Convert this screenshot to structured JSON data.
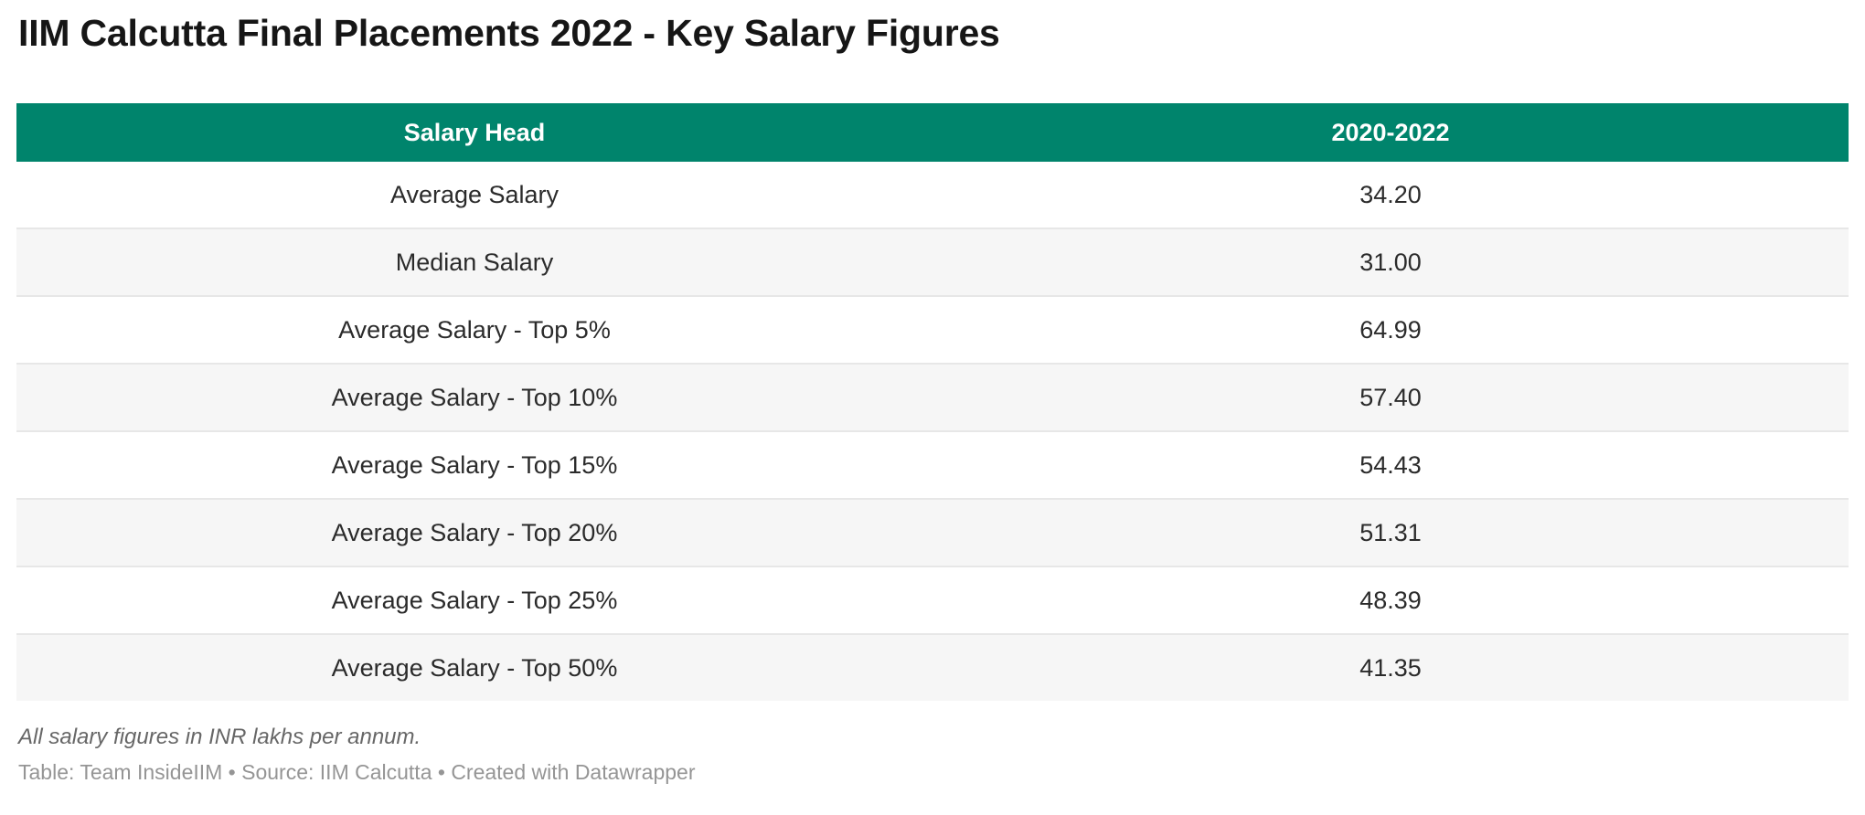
{
  "title": "IIM Calcutta Final Placements 2022 - Key Salary Figures",
  "table": {
    "columns": {
      "salary_head": "Salary Head",
      "period": "2020-2022"
    },
    "rows": [
      {
        "label": "Average Salary",
        "value": "34.20"
      },
      {
        "label": "Median Salary",
        "value": "31.00"
      },
      {
        "label": "Average Salary - Top 5%",
        "value": "64.99"
      },
      {
        "label": "Average Salary - Top 10%",
        "value": "57.40"
      },
      {
        "label": "Average Salary - Top 15%",
        "value": "54.43"
      },
      {
        "label": "Average Salary - Top 20%",
        "value": "51.31"
      },
      {
        "label": "Average Salary - Top 25%",
        "value": "48.39"
      },
      {
        "label": "Average Salary - Top 50%",
        "value": "41.35"
      }
    ]
  },
  "footnote": "All salary figures in INR lakhs per annum.",
  "credit": "Table: Team InsideIIM • Source: IIM Calcutta • Created with Datawrapper",
  "colors": {
    "header_bg": "#00846C",
    "header_text": "#ffffff",
    "row_bg": "#ffffff",
    "row_alt_bg": "#f6f6f6",
    "divider": "#e7e7e7",
    "title_text": "#161616",
    "cell_text": "#2b2b2b",
    "footnote_text": "#676767",
    "credit_text": "#959595"
  },
  "chart_data": {
    "type": "table",
    "title": "IIM Calcutta Final Placements 2022 - Key Salary Figures",
    "columns": [
      "Salary Head",
      "2020-2022"
    ],
    "categories": [
      "Average Salary",
      "Median Salary",
      "Average Salary - Top 5%",
      "Average Salary - Top 10%",
      "Average Salary - Top 15%",
      "Average Salary - Top 20%",
      "Average Salary - Top 25%",
      "Average Salary - Top 50%"
    ],
    "values": [
      34.2,
      31.0,
      64.99,
      57.4,
      54.43,
      51.31,
      48.39,
      41.35
    ],
    "unit": "INR lakhs per annum",
    "layout": {
      "header_alignment": "center",
      "cell_alignment": "center",
      "striped_rows": true
    }
  }
}
